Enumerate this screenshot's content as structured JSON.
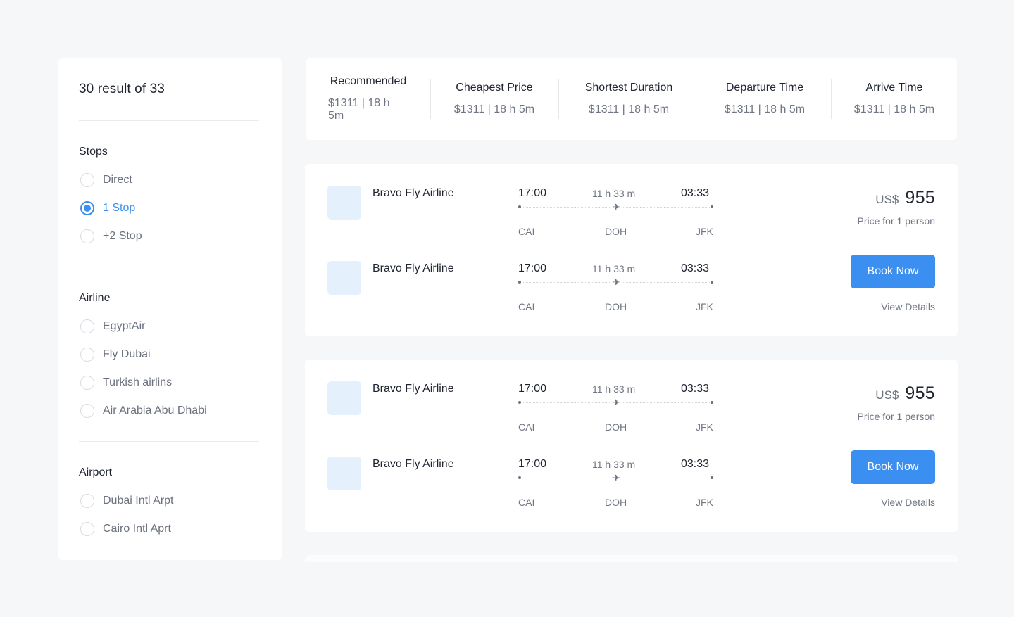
{
  "sidebar": {
    "result_count": "30 result of 33",
    "stops": {
      "title": "Stops",
      "options": [
        {
          "label": "Direct",
          "checked": false
        },
        {
          "label": "1 Stop",
          "checked": true
        },
        {
          "label": "+2 Stop",
          "checked": false
        }
      ]
    },
    "airline": {
      "title": "Airline",
      "options": [
        {
          "label": "EgyptAir"
        },
        {
          "label": "Fly Dubai"
        },
        {
          "label": "Turkish airlins"
        },
        {
          "label": "Air Arabia Abu Dhabi"
        }
      ]
    },
    "airport": {
      "title": "Airport",
      "options": [
        {
          "label": "Dubai Intl Arpt"
        },
        {
          "label": "Cairo Intl Aprt"
        }
      ]
    }
  },
  "sort": {
    "tabs": [
      {
        "name": "Recommended",
        "value": "$1311 | 18 h 5m"
      },
      {
        "name": "Cheapest Price",
        "value": "$1311 | 18 h 5m"
      },
      {
        "name": "Shortest Duration",
        "value": "$1311 | 18 h 5m"
      },
      {
        "name": "Departure Time",
        "value": "$1311 | 18 h 5m"
      },
      {
        "name": "Arrive Time",
        "value": "$1311 | 18 h 5m"
      }
    ]
  },
  "results": [
    {
      "legs": [
        {
          "airline": "Bravo Fly Airline",
          "depart": "17:00",
          "duration": "11 h 33 m",
          "arrive": "03:33",
          "from": "CAI",
          "via": "DOH",
          "to": "JFK"
        },
        {
          "airline": "Bravo Fly Airline",
          "depart": "17:00",
          "duration": "11 h 33 m",
          "arrive": "03:33",
          "from": "CAI",
          "via": "DOH",
          "to": "JFK"
        }
      ],
      "currency": "US$",
      "amount": "955",
      "price_note": "Price for 1 person",
      "book_label": "Book Now",
      "details_label": "View Details"
    },
    {
      "legs": [
        {
          "airline": "Bravo Fly Airline",
          "depart": "17:00",
          "duration": "11 h 33 m",
          "arrive": "03:33",
          "from": "CAI",
          "via": "DOH",
          "to": "JFK"
        },
        {
          "airline": "Bravo Fly Airline",
          "depart": "17:00",
          "duration": "11 h 33 m",
          "arrive": "03:33",
          "from": "CAI",
          "via": "DOH",
          "to": "JFK"
        }
      ],
      "currency": "US$",
      "amount": "955",
      "price_note": "Price for 1 person",
      "book_label": "Book Now",
      "details_label": "View Details"
    }
  ],
  "icons": {
    "plane": "airplane-icon",
    "airline_logo": "airline-logo"
  },
  "colors": {
    "accent": "#3b8ff0",
    "logo_bg": "#e4f1fd"
  }
}
